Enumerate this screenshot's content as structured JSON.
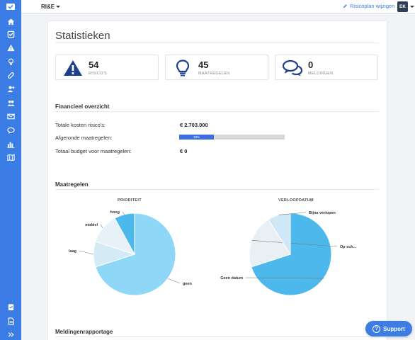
{
  "header": {
    "app_title": "RI&E",
    "edit_link": "Risicoplan wijzigen",
    "avatar_initials": "EK"
  },
  "page": {
    "title": "Statistieken"
  },
  "stats": [
    {
      "value": "54",
      "label": "RISICO'S",
      "icon": "warning-icon"
    },
    {
      "value": "45",
      "label": "MAATREGELEN",
      "icon": "lightbulb-icon"
    },
    {
      "value": "0",
      "label": "MELDINGEN",
      "icon": "chat-bubbles-icon"
    }
  ],
  "financieel": {
    "heading": "Financieel overzicht",
    "rows": [
      {
        "label": "Totale kosten risico's:",
        "value": "€ 2.703.000"
      },
      {
        "label": "Afgeronde maatregelen:",
        "progress_text": "33%",
        "progress": 0.33
      },
      {
        "label": "Totaal budget voor maatregelen:",
        "value": "€ 0"
      }
    ]
  },
  "maatregelen": {
    "heading": "Maatregelen"
  },
  "meldingen": {
    "heading": "Meldingenrapportage"
  },
  "support": {
    "label": "Support"
  },
  "colors": {
    "sidebar": "#3b7de4",
    "accent": "#3b7de4",
    "progress": "#3b6fe0"
  },
  "chart_data": [
    {
      "type": "pie",
      "title": "PRIORITEIT",
      "categories": [
        "geen",
        "laag",
        "middel",
        "hoog"
      ],
      "values": [
        70,
        10,
        12,
        8
      ],
      "colors": [
        "#8ed7f7",
        "#d4ebf6",
        "#e7f2f8",
        "#4cb8ec"
      ]
    },
    {
      "type": "pie",
      "title": "VERLOOPDATUM",
      "categories": [
        "Geen datum",
        "Op sch...",
        "Bijna verlopen"
      ],
      "values": [
        70,
        21,
        9
      ],
      "colors": [
        "#4cb8ec",
        "#e8f0f4",
        "#cfe7f6"
      ]
    }
  ]
}
